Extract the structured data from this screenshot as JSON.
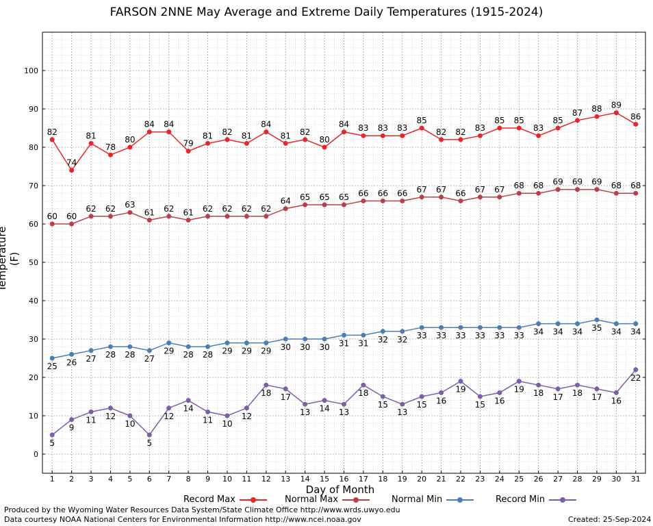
{
  "chart_data": {
    "type": "line",
    "title": "FARSON 2NNE May Average and Extreme Daily Temperatures (1915-2024)",
    "xlabel": "Day of Month",
    "ylabel": "Temperature (F)",
    "ylim": [
      -5,
      110
    ],
    "yticks": [
      0,
      10,
      20,
      30,
      40,
      50,
      60,
      70,
      80,
      90,
      100
    ],
    "x": [
      1,
      2,
      3,
      4,
      5,
      6,
      7,
      8,
      9,
      10,
      11,
      12,
      13,
      14,
      15,
      16,
      17,
      18,
      19,
      20,
      21,
      22,
      23,
      24,
      25,
      26,
      27,
      28,
      29,
      30,
      31
    ],
    "grid": true,
    "legend_position": "bottom",
    "series": [
      {
        "name": "Record Max",
        "color": "#e8262a",
        "label_pos": "above",
        "values": [
          82,
          74,
          81,
          78,
          80,
          84,
          84,
          79,
          81,
          82,
          81,
          84,
          81,
          82,
          80,
          84,
          83,
          83,
          83,
          85,
          82,
          82,
          83,
          85,
          85,
          83,
          85,
          87,
          88,
          89,
          86
        ]
      },
      {
        "name": "Normal Max",
        "color": "#b94048",
        "label_pos": "above",
        "values": [
          60,
          60,
          62,
          62,
          63,
          61,
          62,
          61,
          62,
          62,
          62,
          62,
          64,
          65,
          65,
          65,
          66,
          66,
          66,
          67,
          67,
          66,
          67,
          67,
          68,
          68,
          69,
          69,
          69,
          68,
          68
        ]
      },
      {
        "name": "Normal Min",
        "color": "#4a7fb5",
        "label_pos": "below",
        "values": [
          25,
          26,
          27,
          28,
          28,
          27,
          29,
          28,
          28,
          29,
          29,
          29,
          30,
          30,
          30,
          31,
          31,
          32,
          32,
          33,
          33,
          33,
          33,
          33,
          33,
          34,
          34,
          34,
          35,
          34,
          34
        ]
      },
      {
        "name": "Record Min",
        "color": "#7b5ea7",
        "label_pos": "below",
        "values": [
          5,
          9,
          11,
          12,
          10,
          5,
          12,
          14,
          11,
          10,
          12,
          18,
          17,
          13,
          14,
          13,
          18,
          15,
          13,
          15,
          16,
          19,
          15,
          16,
          19,
          18,
          17,
          18,
          17,
          16,
          22
        ]
      }
    ]
  },
  "footer": {
    "produced_by": "Produced by the Wyoming Water Resources Data System/State Climate Office http://www.wrds.uwyo.edu",
    "data_courtesy": "Data courtesy NOAA National Centers for Environmental Information http://www.ncei.noaa.gov",
    "created": "Created:  25-Sep-2024"
  }
}
